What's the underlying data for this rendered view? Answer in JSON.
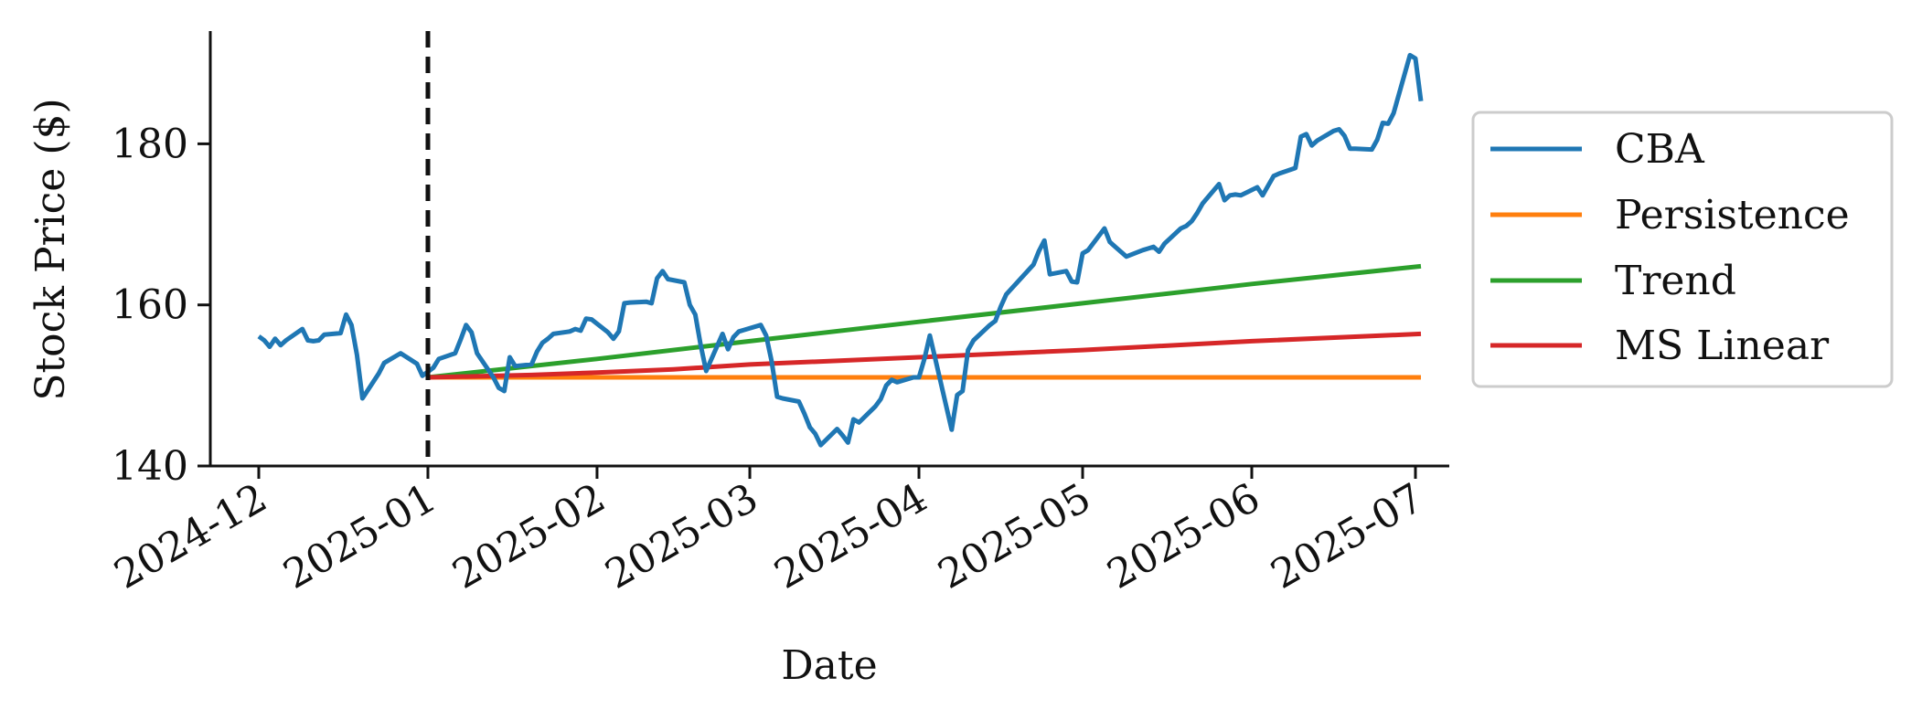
{
  "chart_data": {
    "type": "line",
    "xlabel": "Date",
    "ylabel": "Stock Price ($)",
    "ylim": [
      140,
      194
    ],
    "xlim": [
      "2024-11-27",
      "2025-07-01"
    ],
    "x_ticks": [
      "2024-12",
      "2025-01",
      "2025-02",
      "2025-03",
      "2025-04",
      "2025-05",
      "2025-06",
      "2025-07"
    ],
    "x_tick_dates": [
      "2024-12-01",
      "2025-01-01",
      "2025-02-01",
      "2025-03-01",
      "2025-04-01",
      "2025-05-01",
      "2025-06-01",
      "2025-07-01"
    ],
    "y_ticks": [
      140,
      160,
      180
    ],
    "split_line": {
      "date": "2025-01-01",
      "style": "dashed",
      "color": "#111111"
    },
    "legend_placement": "right, outside plot",
    "grid": false,
    "series": [
      {
        "name": "CBA",
        "color": "#1f77b4",
        "points": [
          [
            "2024-12-01",
            156.1
          ],
          [
            "2024-12-02",
            155.6
          ],
          [
            "2024-12-03",
            154.8
          ],
          [
            "2024-12-04",
            155.8
          ],
          [
            "2024-12-05",
            155.0
          ],
          [
            "2024-12-06",
            155.6
          ],
          [
            "2024-12-09",
            157.0
          ],
          [
            "2024-12-10",
            155.6
          ],
          [
            "2024-12-11",
            155.5
          ],
          [
            "2024-12-12",
            155.6
          ],
          [
            "2024-12-13",
            156.3
          ],
          [
            "2024-12-16",
            156.5
          ],
          [
            "2024-12-17",
            158.8
          ],
          [
            "2024-12-18",
            157.5
          ],
          [
            "2024-12-19",
            153.8
          ],
          [
            "2024-12-20",
            148.4
          ],
          [
            "2024-12-23",
            151.5
          ],
          [
            "2024-12-24",
            152.8
          ],
          [
            "2024-12-27",
            154.0
          ],
          [
            "2024-12-30",
            152.7
          ],
          [
            "2024-12-31",
            151.2
          ],
          [
            "2025-01-02",
            152.2
          ],
          [
            "2025-01-03",
            153.3
          ],
          [
            "2025-01-06",
            154.0
          ],
          [
            "2025-01-07",
            155.7
          ],
          [
            "2025-01-08",
            157.5
          ],
          [
            "2025-01-09",
            156.6
          ],
          [
            "2025-01-10",
            154.0
          ],
          [
            "2025-01-13",
            151.0
          ],
          [
            "2025-01-14",
            149.7
          ],
          [
            "2025-01-15",
            149.3
          ],
          [
            "2025-01-16",
            153.5
          ],
          [
            "2025-01-17",
            152.4
          ],
          [
            "2025-01-20",
            152.6
          ],
          [
            "2025-01-21",
            154.2
          ],
          [
            "2025-01-22",
            155.3
          ],
          [
            "2025-01-23",
            155.8
          ],
          [
            "2025-01-24",
            156.4
          ],
          [
            "2025-01-27",
            156.7
          ],
          [
            "2025-01-28",
            157.0
          ],
          [
            "2025-01-29",
            156.8
          ],
          [
            "2025-01-30",
            158.3
          ],
          [
            "2025-01-31",
            158.2
          ],
          [
            "2025-02-03",
            156.6
          ],
          [
            "2025-02-04",
            155.8
          ],
          [
            "2025-02-05",
            156.7
          ],
          [
            "2025-02-06",
            160.2
          ],
          [
            "2025-02-07",
            160.3
          ],
          [
            "2025-02-10",
            160.4
          ],
          [
            "2025-02-11",
            160.2
          ],
          [
            "2025-02-12",
            163.3
          ],
          [
            "2025-02-13",
            164.2
          ],
          [
            "2025-02-14",
            163.2
          ],
          [
            "2025-02-17",
            162.8
          ],
          [
            "2025-02-18",
            160.0
          ],
          [
            "2025-02-19",
            158.8
          ],
          [
            "2025-02-20",
            155.0
          ],
          [
            "2025-02-21",
            151.8
          ],
          [
            "2025-02-24",
            156.4
          ],
          [
            "2025-02-25",
            154.5
          ],
          [
            "2025-02-26",
            156.0
          ],
          [
            "2025-02-27",
            156.7
          ],
          [
            "2025-02-28",
            156.9
          ],
          [
            "2025-03-03",
            157.5
          ],
          [
            "2025-03-04",
            156.2
          ],
          [
            "2025-03-05",
            153.0
          ],
          [
            "2025-03-06",
            148.6
          ],
          [
            "2025-03-07",
            148.4
          ],
          [
            "2025-03-10",
            148.0
          ],
          [
            "2025-03-11",
            146.5
          ],
          [
            "2025-03-12",
            144.8
          ],
          [
            "2025-03-13",
            144.0
          ],
          [
            "2025-03-14",
            142.6
          ],
          [
            "2025-03-17",
            144.6
          ],
          [
            "2025-03-18",
            143.8
          ],
          [
            "2025-03-19",
            142.9
          ],
          [
            "2025-03-20",
            145.8
          ],
          [
            "2025-03-21",
            145.4
          ],
          [
            "2025-03-24",
            147.4
          ],
          [
            "2025-03-25",
            148.3
          ],
          [
            "2025-03-26",
            150.0
          ],
          [
            "2025-03-27",
            150.7
          ],
          [
            "2025-03-28",
            150.4
          ],
          [
            "2025-03-31",
            151.0
          ],
          [
            "2025-04-01",
            151.0
          ],
          [
            "2025-04-02",
            153.3
          ],
          [
            "2025-04-03",
            156.2
          ],
          [
            "2025-04-04",
            153.3
          ],
          [
            "2025-04-07",
            144.5
          ],
          [
            "2025-04-08",
            148.8
          ],
          [
            "2025-04-09",
            149.3
          ],
          [
            "2025-04-10",
            154.4
          ],
          [
            "2025-04-11",
            155.6
          ],
          [
            "2025-04-14",
            157.5
          ],
          [
            "2025-04-15",
            158.0
          ],
          [
            "2025-04-16",
            159.8
          ],
          [
            "2025-04-17",
            161.3
          ],
          [
            "2025-04-22",
            165.0
          ],
          [
            "2025-04-23",
            166.7
          ],
          [
            "2025-04-24",
            168.0
          ],
          [
            "2025-04-25",
            163.8
          ],
          [
            "2025-04-28",
            164.2
          ],
          [
            "2025-04-29",
            162.9
          ],
          [
            "2025-04-30",
            162.8
          ],
          [
            "2025-05-01",
            166.4
          ],
          [
            "2025-05-02",
            166.8
          ],
          [
            "2025-05-05",
            169.5
          ],
          [
            "2025-05-06",
            167.8
          ],
          [
            "2025-05-07",
            167.2
          ],
          [
            "2025-05-08",
            166.6
          ],
          [
            "2025-05-09",
            166.0
          ],
          [
            "2025-05-12",
            166.8
          ],
          [
            "2025-05-13",
            167.0
          ],
          [
            "2025-05-14",
            167.2
          ],
          [
            "2025-05-15",
            166.6
          ],
          [
            "2025-05-16",
            167.6
          ],
          [
            "2025-05-19",
            169.5
          ],
          [
            "2025-05-20",
            169.8
          ],
          [
            "2025-05-21",
            170.4
          ],
          [
            "2025-05-22",
            171.4
          ],
          [
            "2025-05-23",
            172.6
          ],
          [
            "2025-05-26",
            175.0
          ],
          [
            "2025-05-27",
            173.0
          ],
          [
            "2025-05-28",
            173.6
          ],
          [
            "2025-05-29",
            173.7
          ],
          [
            "2025-05-30",
            173.6
          ],
          [
            "2025-06-02",
            174.6
          ],
          [
            "2025-06-03",
            173.6
          ],
          [
            "2025-06-04",
            174.8
          ],
          [
            "2025-06-05",
            176.0
          ],
          [
            "2025-06-06",
            176.3
          ],
          [
            "2025-06-09",
            177.0
          ],
          [
            "2025-06-10",
            180.9
          ],
          [
            "2025-06-11",
            181.2
          ],
          [
            "2025-06-12",
            179.8
          ],
          [
            "2025-06-13",
            180.4
          ],
          [
            "2025-06-16",
            181.6
          ],
          [
            "2025-06-17",
            181.8
          ],
          [
            "2025-06-18",
            181.0
          ],
          [
            "2025-06-19",
            179.4
          ],
          [
            "2025-06-20",
            179.4
          ],
          [
            "2025-06-23",
            179.3
          ],
          [
            "2025-06-24",
            180.5
          ],
          [
            "2025-06-25",
            182.6
          ],
          [
            "2025-06-26",
            182.5
          ],
          [
            "2025-06-27",
            183.8
          ],
          [
            "2025-06-30",
            191.0
          ],
          [
            "2025-07-01",
            190.6
          ],
          [
            "2025-07-02",
            185.3
          ]
        ]
      },
      {
        "name": "Persistence",
        "color": "#ff7f0e",
        "points": [
          [
            "2025-01-01",
            151.0
          ],
          [
            "2025-07-02",
            151.0
          ]
        ]
      },
      {
        "name": "Trend",
        "color": "#2ca02c",
        "points": [
          [
            "2025-01-01",
            151.0
          ],
          [
            "2025-02-01",
            153.3
          ],
          [
            "2025-03-01",
            155.5
          ],
          [
            "2025-04-01",
            157.9
          ],
          [
            "2025-05-01",
            160.2
          ],
          [
            "2025-06-01",
            162.6
          ],
          [
            "2025-07-02",
            164.8
          ]
        ]
      },
      {
        "name": "MS Linear",
        "color": "#d62728",
        "points": [
          [
            "2025-01-01",
            151.0
          ],
          [
            "2025-01-20",
            151.3
          ],
          [
            "2025-02-01",
            151.6
          ],
          [
            "2025-02-15",
            152.0
          ],
          [
            "2025-03-01",
            152.6
          ],
          [
            "2025-04-01",
            153.5
          ],
          [
            "2025-05-01",
            154.4
          ],
          [
            "2025-06-01",
            155.5
          ],
          [
            "2025-07-02",
            156.4
          ]
        ]
      }
    ]
  }
}
